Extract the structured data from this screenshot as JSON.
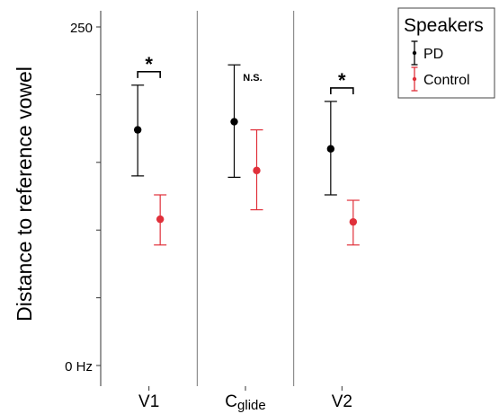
{
  "chart_data": {
    "type": "scatter",
    "title": "",
    "xlabel": "",
    "ylabel": "Distance to reference vowel",
    "ylim": [
      0,
      250
    ],
    "y_tick_labels": [
      {
        "value": 0,
        "label": "0 Hz"
      },
      {
        "value": 50,
        "label": ""
      },
      {
        "value": 100,
        "label": ""
      },
      {
        "value": 150,
        "label": ""
      },
      {
        "value": 200,
        "label": ""
      },
      {
        "value": 250,
        "label": "250"
      }
    ],
    "categories": [
      {
        "main": "V1",
        "sub": ""
      },
      {
        "main": "C",
        "sub": "glide"
      },
      {
        "main": "V2",
        "sub": ""
      }
    ],
    "series": [
      {
        "name": "PD",
        "color": "#000000",
        "values": [
          174,
          180,
          160
        ],
        "lower": [
          140,
          139,
          126
        ],
        "upper": [
          207,
          222,
          195
        ]
      },
      {
        "name": "Control",
        "color": "#e0303a",
        "values": [
          108,
          144,
          106
        ],
        "lower": [
          89,
          115,
          89
        ],
        "upper": [
          126,
          174,
          122
        ]
      }
    ],
    "significance": [
      {
        "category": 0,
        "label": "*",
        "bracket": true
      },
      {
        "category": 1,
        "label": "N.S.",
        "bracket": false
      },
      {
        "category": 2,
        "label": "*",
        "bracket": true
      }
    ],
    "grid": false,
    "legend": {
      "title": "Speakers",
      "position": "right"
    }
  }
}
